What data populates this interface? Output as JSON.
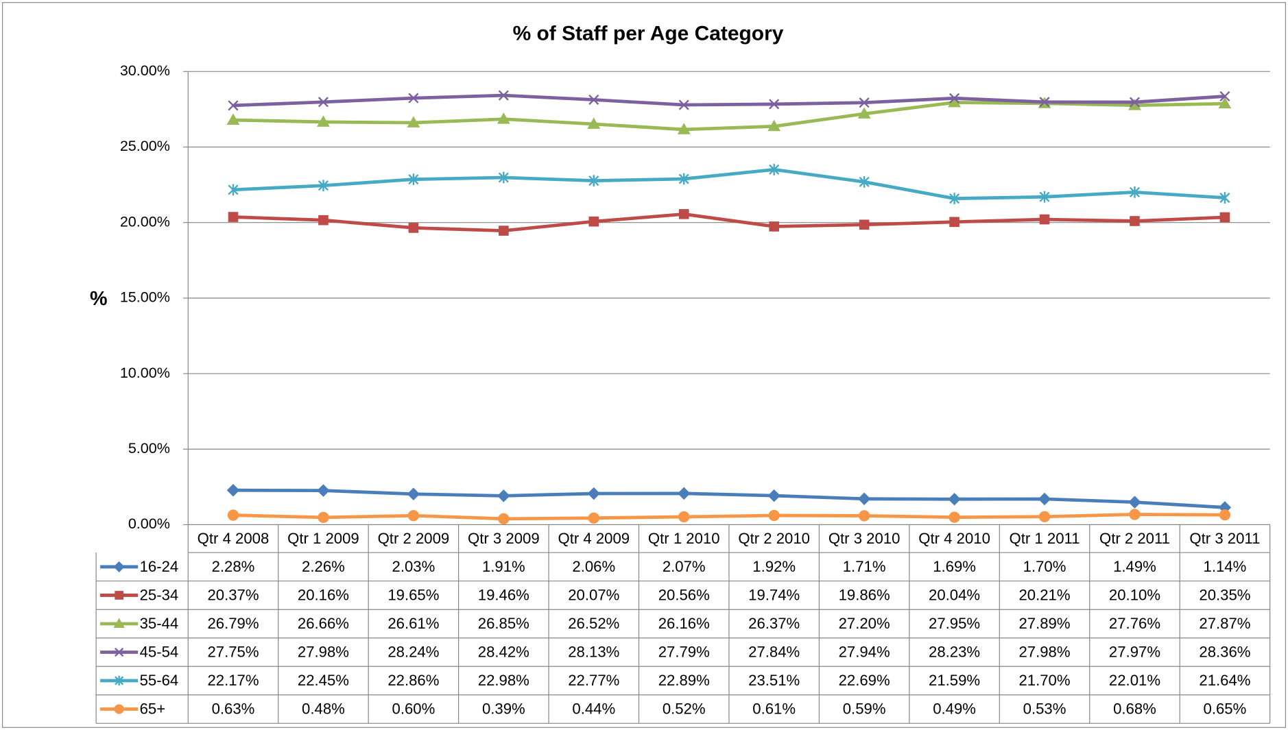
{
  "chart_data": {
    "type": "line",
    "title": "% of Staff per Age Category",
    "y_label": "%",
    "categories": [
      "Qtr 4 2008",
      "Qtr 1 2009",
      "Qtr 2 2009",
      "Qtr 3 2009",
      "Qtr 4 2009",
      "Qtr 1 2010",
      "Qtr 2 2010",
      "Qtr 3 2010",
      "Qtr 4 2010",
      "Qtr 1 2011",
      "Qtr 2 2011",
      "Qtr 3 2011"
    ],
    "ylim": [
      0,
      30
    ],
    "yticks": [
      {
        "value": 0,
        "label": "0.00%"
      },
      {
        "value": 5,
        "label": "5.00%"
      },
      {
        "value": 10,
        "label": "10.00%"
      },
      {
        "value": 15,
        "label": "15.00%"
      },
      {
        "value": 20,
        "label": "20.00%"
      },
      {
        "value": 25,
        "label": "25.00%"
      },
      {
        "value": 30,
        "label": "30.00%"
      }
    ],
    "grid": true,
    "legend": "table",
    "series": [
      {
        "name": "16-24",
        "color": "#4a7ebb",
        "marker": "diamond",
        "values": [
          2.28,
          2.26,
          2.03,
          1.91,
          2.06,
          2.07,
          1.92,
          1.71,
          1.69,
          1.7,
          1.49,
          1.14
        ],
        "value_labels": [
          "2.28%",
          "2.26%",
          "2.03%",
          "1.91%",
          "2.06%",
          "2.07%",
          "1.92%",
          "1.71%",
          "1.69%",
          "1.70%",
          "1.49%",
          "1.14%"
        ]
      },
      {
        "name": "25-34",
        "color": "#be4b48",
        "marker": "square",
        "values": [
          20.37,
          20.16,
          19.65,
          19.46,
          20.07,
          20.56,
          19.74,
          19.86,
          20.04,
          20.21,
          20.1,
          20.35
        ],
        "value_labels": [
          "20.37%",
          "20.16%",
          "19.65%",
          "19.46%",
          "20.07%",
          "20.56%",
          "19.74%",
          "19.86%",
          "20.04%",
          "20.21%",
          "20.10%",
          "20.35%"
        ]
      },
      {
        "name": "35-44",
        "color": "#98b954",
        "marker": "triangle",
        "values": [
          26.79,
          26.66,
          26.61,
          26.85,
          26.52,
          26.16,
          26.37,
          27.2,
          27.95,
          27.89,
          27.76,
          27.87
        ],
        "value_labels": [
          "26.79%",
          "26.66%",
          "26.61%",
          "26.85%",
          "26.52%",
          "26.16%",
          "26.37%",
          "27.20%",
          "27.95%",
          "27.89%",
          "27.76%",
          "27.87%"
        ]
      },
      {
        "name": "45-54",
        "color": "#7d60a0",
        "marker": "x",
        "values": [
          27.75,
          27.98,
          28.24,
          28.42,
          28.13,
          27.79,
          27.84,
          27.94,
          28.23,
          27.98,
          27.97,
          28.36
        ],
        "value_labels": [
          "27.75%",
          "27.98%",
          "28.24%",
          "28.42%",
          "28.13%",
          "27.79%",
          "27.84%",
          "27.94%",
          "28.23%",
          "27.98%",
          "27.97%",
          "28.36%"
        ]
      },
      {
        "name": "55-64",
        "color": "#46aac5",
        "marker": "star",
        "values": [
          22.17,
          22.45,
          22.86,
          22.98,
          22.77,
          22.89,
          23.51,
          22.69,
          21.59,
          21.7,
          22.01,
          21.64
        ],
        "value_labels": [
          "22.17%",
          "22.45%",
          "22.86%",
          "22.98%",
          "22.77%",
          "22.89%",
          "23.51%",
          "22.69%",
          "21.59%",
          "21.70%",
          "22.01%",
          "21.64%"
        ]
      },
      {
        "name": "65+",
        "color": "#f79646",
        "marker": "circle",
        "values": [
          0.63,
          0.48,
          0.6,
          0.39,
          0.44,
          0.52,
          0.61,
          0.59,
          0.49,
          0.53,
          0.68,
          0.65
        ],
        "value_labels": [
          "0.63%",
          "0.48%",
          "0.60%",
          "0.39%",
          "0.44%",
          "0.52%",
          "0.61%",
          "0.59%",
          "0.49%",
          "0.53%",
          "0.68%",
          "0.65%"
        ]
      }
    ]
  }
}
